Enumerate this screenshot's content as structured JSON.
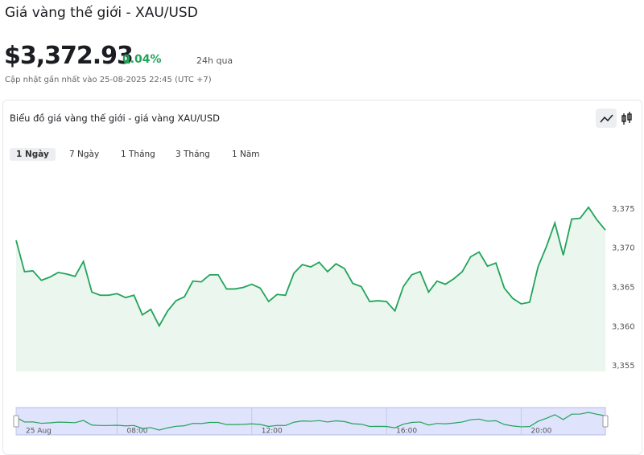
{
  "header": {
    "title": "Giá vàng thế giới - XAU/USD"
  },
  "price": {
    "value": "$3,372.93",
    "change": "0.04%",
    "change_period": "24h qua",
    "updated": "Cập nhật gần nhất vào 25-08-2025 22:45 (UTC +7)"
  },
  "card": {
    "title": "Biểu đồ giá vàng thế giới - giá vàng XAU/USD",
    "tabs": [
      "1 Ngày",
      "7 Ngày",
      "1 Tháng",
      "3 Tháng",
      "1 Năm"
    ],
    "selected_tab": 0
  },
  "chart_data": {
    "type": "line",
    "color": "#22a35a",
    "values": [
      3371.0,
      3367.0,
      3367.1,
      3365.9,
      3366.3,
      3366.9,
      3366.7,
      3366.4,
      3368.3,
      3364.4,
      3364.0,
      3364.0,
      3364.2,
      3363.7,
      3364.0,
      3361.5,
      3362.2,
      3360.1,
      3362.0,
      3363.3,
      3363.8,
      3365.8,
      3365.7,
      3366.6,
      3366.6,
      3364.8,
      3364.8,
      3365.0,
      3365.4,
      3364.9,
      3363.2,
      3364.1,
      3364.0,
      3366.8,
      3367.9,
      3367.6,
      3368.2,
      3367.0,
      3368.0,
      3367.4,
      3365.5,
      3365.1,
      3363.2,
      3363.3,
      3363.2,
      3362.0,
      3365.1,
      3366.6,
      3367.0,
      3364.4,
      3365.8,
      3365.4,
      3366.1,
      3367.0,
      3368.9,
      3369.5,
      3367.7,
      3368.1,
      3364.9,
      3363.6,
      3362.9,
      3363.1,
      3367.6,
      3370.2,
      3373.2,
      3369.1,
      3373.7,
      3373.8,
      3375.2,
      3373.6,
      3372.3
    ],
    "ylim": [
      3354.3,
      3380.3
    ],
    "yticks": [
      {
        "value": 3355,
        "label": "3,355"
      },
      {
        "value": 3360,
        "label": "3,360"
      },
      {
        "value": 3365,
        "label": "3,365"
      },
      {
        "value": 3370,
        "label": "3,370"
      },
      {
        "value": 3375,
        "label": "3,375"
      }
    ],
    "navigator_xticks": [
      {
        "value": 0,
        "label": "25 Aug"
      },
      {
        "value": 12,
        "label": "08:00"
      },
      {
        "value": 28,
        "label": "12:00"
      },
      {
        "value": 44,
        "label": "16:00"
      },
      {
        "value": 60,
        "label": "20:00"
      }
    ]
  }
}
